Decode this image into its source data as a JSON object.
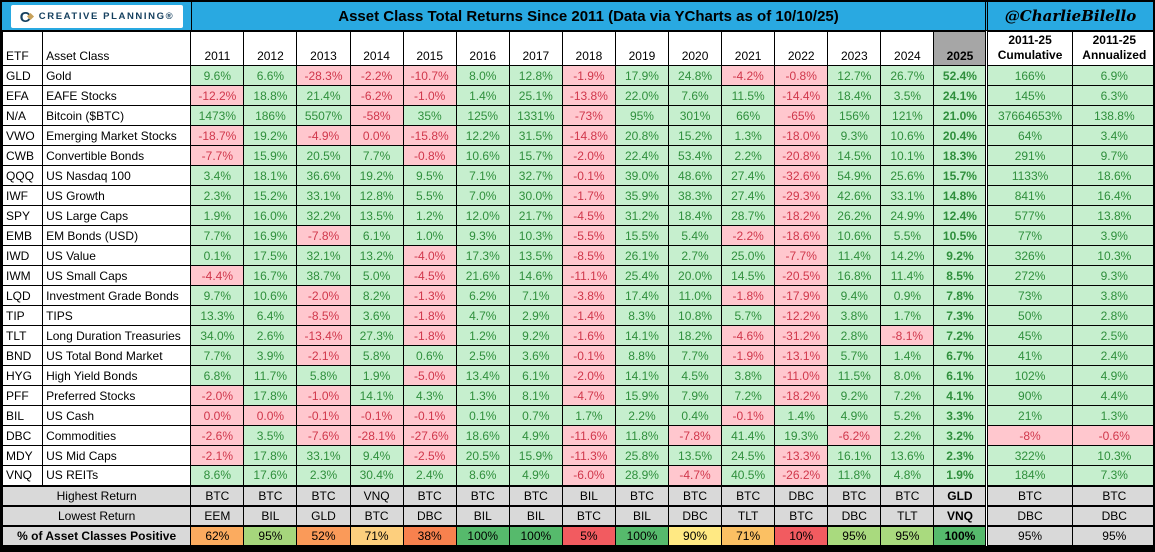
{
  "header": {
    "logo_text": "CREATIVE PLANNING®",
    "title": "Asset Class Total Returns Since 2011 (Data via YCharts as of 10/10/25)",
    "handle": "@CharlieBilello"
  },
  "columns": {
    "etf": "ETF",
    "asset_class": "Asset Class",
    "cum_line1": "2011-25",
    "cum_line2": "Cumulative",
    "ann_line1": "2011-25",
    "ann_line2": "Annualized"
  },
  "colors": {
    "accent_cyan": "#29A9E1",
    "logo_navy": "#15405F",
    "logo_gold": "#C7A15A",
    "positive_bg": "#C6EFCE",
    "positive_text": "#2F8F3C",
    "negative_bg": "#FFC7CE",
    "negative_text": "#D0374B",
    "header_2025_bg": "#A6A6A6",
    "summary_gray": "#D9D9D9",
    "summary_blue": "#BDD7EE"
  },
  "chart_data": {
    "type": "table",
    "title": "Asset Class Total Returns Since 2011 (Data via YCharts as of 10/10/25)",
    "years": [
      "2011",
      "2012",
      "2013",
      "2014",
      "2015",
      "2016",
      "2017",
      "2018",
      "2019",
      "2020",
      "2021",
      "2022",
      "2023",
      "2024",
      "2025"
    ],
    "rows": [
      {
        "etf": "GLD",
        "asset_class": "Gold",
        "returns": [
          "9.6%",
          "6.6%",
          "-28.3%",
          "-2.2%",
          "-10.7%",
          "8.0%",
          "12.8%",
          "-1.9%",
          "17.9%",
          "24.8%",
          "-4.2%",
          "-0.8%",
          "12.7%",
          "26.7%",
          "52.4%"
        ],
        "cumulative": "166%",
        "annualized": "6.9%"
      },
      {
        "etf": "EFA",
        "asset_class": "EAFE Stocks",
        "returns": [
          "-12.2%",
          "18.8%",
          "21.4%",
          "-6.2%",
          "-1.0%",
          "1.4%",
          "25.1%",
          "-13.8%",
          "22.0%",
          "7.6%",
          "11.5%",
          "-14.4%",
          "18.4%",
          "3.5%",
          "24.1%"
        ],
        "cumulative": "145%",
        "annualized": "6.3%"
      },
      {
        "etf": "N/A",
        "asset_class": "Bitcoin ($BTC)",
        "returns": [
          "1473%",
          "186%",
          "5507%",
          "-58%",
          "35%",
          "125%",
          "1331%",
          "-73%",
          "95%",
          "301%",
          "66%",
          "-65%",
          "156%",
          "121%",
          "21.0%"
        ],
        "cumulative": "37664653%",
        "annualized": "138.8%"
      },
      {
        "etf": "VWO",
        "asset_class": "Emerging Market Stocks",
        "returns": [
          "-18.7%",
          "19.2%",
          "-4.9%",
          "0.0%",
          "-15.8%",
          "12.2%",
          "31.5%",
          "-14.8%",
          "20.8%",
          "15.2%",
          "1.3%",
          "-18.0%",
          "9.3%",
          "10.6%",
          "20.4%"
        ],
        "cumulative": "64%",
        "annualized": "3.4%"
      },
      {
        "etf": "CWB",
        "asset_class": "Convertible Bonds",
        "returns": [
          "-7.7%",
          "15.9%",
          "20.5%",
          "7.7%",
          "-0.8%",
          "10.6%",
          "15.7%",
          "-2.0%",
          "22.4%",
          "53.4%",
          "2.2%",
          "-20.8%",
          "14.5%",
          "10.1%",
          "18.3%"
        ],
        "cumulative": "291%",
        "annualized": "9.7%"
      },
      {
        "etf": "QQQ",
        "asset_class": "US Nasdaq 100",
        "returns": [
          "3.4%",
          "18.1%",
          "36.6%",
          "19.2%",
          "9.5%",
          "7.1%",
          "32.7%",
          "-0.1%",
          "39.0%",
          "48.6%",
          "27.4%",
          "-32.6%",
          "54.9%",
          "25.6%",
          "15.7%"
        ],
        "cumulative": "1133%",
        "annualized": "18.6%"
      },
      {
        "etf": "IWF",
        "asset_class": "US Growth",
        "returns": [
          "2.3%",
          "15.2%",
          "33.1%",
          "12.8%",
          "5.5%",
          "7.0%",
          "30.0%",
          "-1.7%",
          "35.9%",
          "38.3%",
          "27.4%",
          "-29.3%",
          "42.6%",
          "33.1%",
          "14.8%"
        ],
        "cumulative": "841%",
        "annualized": "16.4%"
      },
      {
        "etf": "SPY",
        "asset_class": "US Large Caps",
        "returns": [
          "1.9%",
          "16.0%",
          "32.2%",
          "13.5%",
          "1.2%",
          "12.0%",
          "21.7%",
          "-4.5%",
          "31.2%",
          "18.4%",
          "28.7%",
          "-18.2%",
          "26.2%",
          "24.9%",
          "12.4%"
        ],
        "cumulative": "577%",
        "annualized": "13.8%"
      },
      {
        "etf": "EMB",
        "asset_class": "EM Bonds (USD)",
        "returns": [
          "7.7%",
          "16.9%",
          "-7.8%",
          "6.1%",
          "1.0%",
          "9.3%",
          "10.3%",
          "-5.5%",
          "15.5%",
          "5.4%",
          "-2.2%",
          "-18.6%",
          "10.6%",
          "5.5%",
          "10.5%"
        ],
        "cumulative": "77%",
        "annualized": "3.9%"
      },
      {
        "etf": "IWD",
        "asset_class": "US Value",
        "returns": [
          "0.1%",
          "17.5%",
          "32.1%",
          "13.2%",
          "-4.0%",
          "17.3%",
          "13.5%",
          "-8.5%",
          "26.1%",
          "2.7%",
          "25.0%",
          "-7.7%",
          "11.4%",
          "14.2%",
          "9.2%"
        ],
        "cumulative": "326%",
        "annualized": "10.3%"
      },
      {
        "etf": "IWM",
        "asset_class": "US Small Caps",
        "returns": [
          "-4.4%",
          "16.7%",
          "38.7%",
          "5.0%",
          "-4.5%",
          "21.6%",
          "14.6%",
          "-11.1%",
          "25.4%",
          "20.0%",
          "14.5%",
          "-20.5%",
          "16.8%",
          "11.4%",
          "8.5%"
        ],
        "cumulative": "272%",
        "annualized": "9.3%"
      },
      {
        "etf": "LQD",
        "asset_class": "Investment Grade Bonds",
        "returns": [
          "9.7%",
          "10.6%",
          "-2.0%",
          "8.2%",
          "-1.3%",
          "6.2%",
          "7.1%",
          "-3.8%",
          "17.4%",
          "11.0%",
          "-1.8%",
          "-17.9%",
          "9.4%",
          "0.9%",
          "7.8%"
        ],
        "cumulative": "73%",
        "annualized": "3.8%"
      },
      {
        "etf": "TIP",
        "asset_class": "TIPS",
        "returns": [
          "13.3%",
          "6.4%",
          "-8.5%",
          "3.6%",
          "-1.8%",
          "4.7%",
          "2.9%",
          "-1.4%",
          "8.3%",
          "10.8%",
          "5.7%",
          "-12.2%",
          "3.8%",
          "1.7%",
          "7.3%"
        ],
        "cumulative": "50%",
        "annualized": "2.8%"
      },
      {
        "etf": "TLT",
        "asset_class": "Long Duration Treasuries",
        "returns": [
          "34.0%",
          "2.6%",
          "-13.4%",
          "27.3%",
          "-1.8%",
          "1.2%",
          "9.2%",
          "-1.6%",
          "14.1%",
          "18.2%",
          "-4.6%",
          "-31.2%",
          "2.8%",
          "-8.1%",
          "7.2%"
        ],
        "cumulative": "45%",
        "annualized": "2.5%"
      },
      {
        "etf": "BND",
        "asset_class": "US Total Bond Market",
        "returns": [
          "7.7%",
          "3.9%",
          "-2.1%",
          "5.8%",
          "0.6%",
          "2.5%",
          "3.6%",
          "-0.1%",
          "8.8%",
          "7.7%",
          "-1.9%",
          "-13.1%",
          "5.7%",
          "1.4%",
          "6.7%"
        ],
        "cumulative": "41%",
        "annualized": "2.4%"
      },
      {
        "etf": "HYG",
        "asset_class": "High Yield Bonds",
        "returns": [
          "6.8%",
          "11.7%",
          "5.8%",
          "1.9%",
          "-5.0%",
          "13.4%",
          "6.1%",
          "-2.0%",
          "14.1%",
          "4.5%",
          "3.8%",
          "-11.0%",
          "11.5%",
          "8.0%",
          "6.1%"
        ],
        "cumulative": "102%",
        "annualized": "4.9%"
      },
      {
        "etf": "PFF",
        "asset_class": "Preferred Stocks",
        "returns": [
          "-2.0%",
          "17.8%",
          "-1.0%",
          "14.1%",
          "4.3%",
          "1.3%",
          "8.1%",
          "-4.7%",
          "15.9%",
          "7.9%",
          "7.2%",
          "-18.2%",
          "9.2%",
          "7.2%",
          "4.1%"
        ],
        "cumulative": "90%",
        "annualized": "4.4%"
      },
      {
        "etf": "BIL",
        "asset_class": "US Cash",
        "returns": [
          "0.0%",
          "0.0%",
          "-0.1%",
          "-0.1%",
          "-0.1%",
          "0.1%",
          "0.7%",
          "1.7%",
          "2.2%",
          "0.4%",
          "-0.1%",
          "1.4%",
          "4.9%",
          "5.2%",
          "3.3%"
        ],
        "cumulative": "21%",
        "annualized": "1.3%"
      },
      {
        "etf": "DBC",
        "asset_class": "Commodities",
        "returns": [
          "-2.6%",
          "3.5%",
          "-7.6%",
          "-28.1%",
          "-27.6%",
          "18.6%",
          "4.9%",
          "-11.6%",
          "11.8%",
          "-7.8%",
          "41.4%",
          "19.3%",
          "-6.2%",
          "2.2%",
          "3.2%"
        ],
        "cumulative": "-8%",
        "annualized": "-0.6%"
      },
      {
        "etf": "MDY",
        "asset_class": "US Mid Caps",
        "returns": [
          "-2.1%",
          "17.8%",
          "33.1%",
          "9.4%",
          "-2.5%",
          "20.5%",
          "15.9%",
          "-11.3%",
          "25.8%",
          "13.5%",
          "24.5%",
          "-13.3%",
          "16.1%",
          "13.6%",
          "2.3%"
        ],
        "cumulative": "322%",
        "annualized": "10.3%"
      },
      {
        "etf": "VNQ",
        "asset_class": "US REITs",
        "returns": [
          "8.6%",
          "17.6%",
          "2.3%",
          "30.4%",
          "2.4%",
          "8.6%",
          "4.9%",
          "-6.0%",
          "28.9%",
          "-4.7%",
          "40.5%",
          "-26.2%",
          "11.8%",
          "4.8%",
          "1.9%"
        ],
        "cumulative": "184%",
        "annualized": "7.3%"
      }
    ],
    "summary": {
      "highest": {
        "label": "Highest Return",
        "values": [
          "BTC",
          "BTC",
          "BTC",
          "VNQ",
          "BTC",
          "BTC",
          "BTC",
          "BIL",
          "BTC",
          "BTC",
          "BTC",
          "DBC",
          "BTC",
          "BTC",
          "GLD"
        ],
        "cumulative": "BTC",
        "annualized": "BTC"
      },
      "lowest": {
        "label": "Lowest Return",
        "values": [
          "EEM",
          "BIL",
          "GLD",
          "BTC",
          "DBC",
          "BIL",
          "BIL",
          "BTC",
          "BIL",
          "DBC",
          "TLT",
          "BTC",
          "DBC",
          "TLT",
          "VNQ"
        ],
        "cumulative": "DBC",
        "annualized": "DBC"
      },
      "pct_positive": {
        "label": "% of Asset Classes Positive",
        "values": [
          "62%",
          "95%",
          "52%",
          "71%",
          "38%",
          "100%",
          "100%",
          "5%",
          "100%",
          "90%",
          "71%",
          "10%",
          "95%",
          "95%",
          "100%"
        ],
        "cell_colors": [
          "#FBAB5F",
          "#A6D67C",
          "#FA9A59",
          "#FDCF7D",
          "#F8814E",
          "#56BA6C",
          "#56BA6C",
          "#F25B60",
          "#56BA6C",
          "#FFE983",
          "#FBC063",
          "#F25B60",
          "#A9DA7E",
          "#A9DA7E",
          "#56BA6C"
        ],
        "cumulative": "95%",
        "annualized": "95%"
      }
    }
  }
}
